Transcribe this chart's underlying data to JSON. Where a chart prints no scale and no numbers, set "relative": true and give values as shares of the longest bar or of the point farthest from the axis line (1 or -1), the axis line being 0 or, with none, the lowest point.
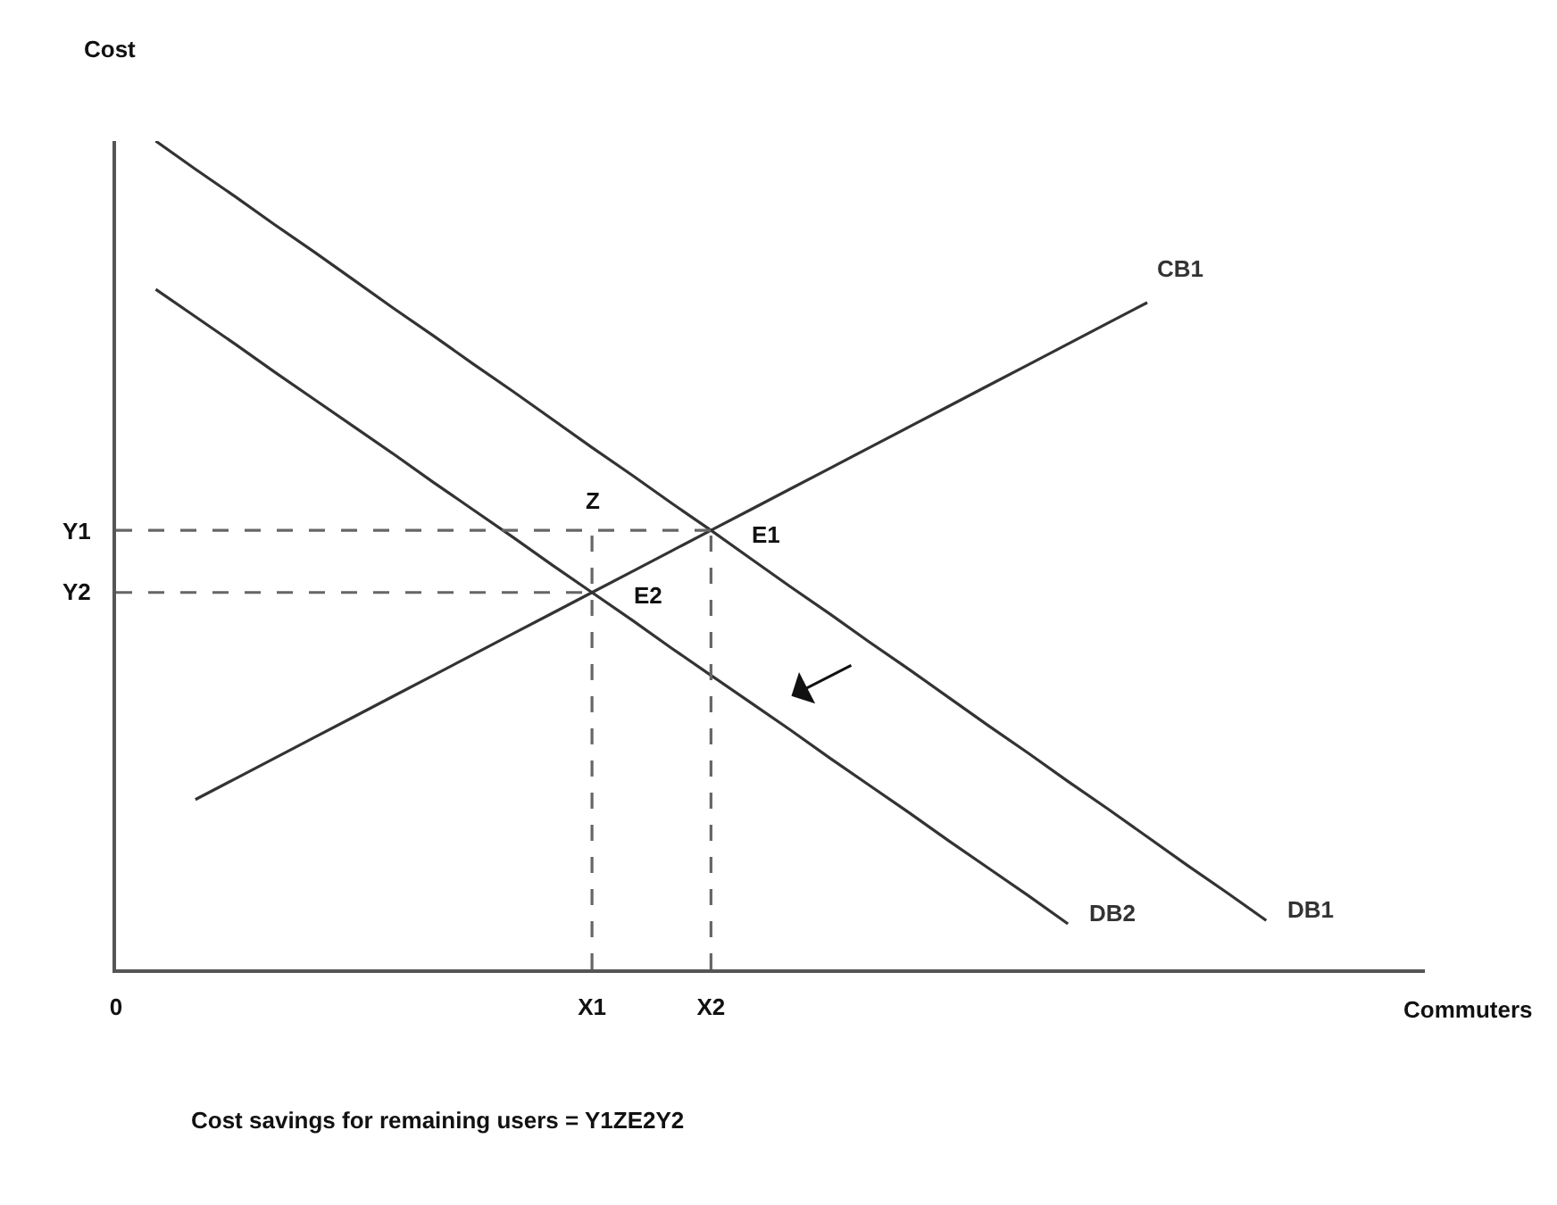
{
  "chart_data": {
    "type": "line",
    "relative": true,
    "xlabel": "Commuters",
    "ylabel": "Cost",
    "legend": false,
    "marker": "none",
    "categories": [
      "0",
      null,
      null,
      null,
      null,
      null,
      null,
      null,
      null,
      null,
      null,
      null,
      "X1",
      null,
      null,
      "X2",
      null,
      null,
      null,
      null,
      null,
      null,
      null,
      null,
      null,
      null,
      null,
      null,
      null,
      null,
      null,
      null,
      null,
      null
    ],
    "series": [
      {
        "name": "DB1",
        "color": "#333333",
        "values": [
          null,
          1.0,
          0.966,
          0.933,
          0.899,
          0.866,
          0.832,
          0.798,
          0.765,
          0.731,
          0.698,
          0.664,
          0.63,
          0.597,
          0.563,
          0.53,
          0.496,
          0.462,
          0.429,
          0.395,
          0.362,
          0.328,
          0.294,
          0.261,
          0.227,
          0.194,
          0.16,
          0.126,
          0.093,
          0.059,
          null,
          null,
          null,
          null
        ]
      },
      {
        "name": "DB2",
        "color": "#333333",
        "values": [
          null,
          0.821,
          0.788,
          0.755,
          0.721,
          0.688,
          0.655,
          0.622,
          0.588,
          0.555,
          0.522,
          0.488,
          0.455,
          0.422,
          0.388,
          0.355,
          0.322,
          0.289,
          0.255,
          0.222,
          0.189,
          0.155,
          0.122,
          0.089,
          0.055,
          null,
          null,
          null,
          null,
          null,
          null,
          null,
          null,
          null
        ]
      },
      {
        "name": "CB1",
        "color": "#333333",
        "values": [
          null,
          null,
          0.205,
          0.23,
          0.255,
          0.28,
          0.305,
          0.33,
          0.355,
          0.38,
          0.405,
          0.43,
          0.455,
          0.48,
          0.505,
          0.53,
          0.555,
          0.58,
          0.605,
          0.63,
          0.655,
          0.68,
          0.705,
          0.73,
          0.755,
          0.78,
          0.805,
          null,
          null,
          null,
          null,
          null,
          null,
          null
        ]
      },
      {
        "color": "#666666",
        "line_style": "dashed",
        "x": [
          "0",
          "X2"
        ],
        "values": [
          0.53,
          0.53
        ]
      },
      {
        "color": "#666666",
        "line_style": "dashed",
        "x": [
          "0",
          "X1"
        ],
        "values": [
          0.455,
          0.455
        ]
      },
      {
        "color": "#666666",
        "line_style": "dashed",
        "x": [
          "X1",
          "X1"
        ],
        "values": [
          0,
          0.53
        ]
      },
      {
        "color": "#666666",
        "line_style": "dashed",
        "x": [
          "X2",
          "X2"
        ],
        "values": [
          0,
          0.53
        ]
      }
    ],
    "annotations": [
      {
        "text": "Y1",
        "x": "0",
        "y": 0.53
      },
      {
        "text": "Y2",
        "x": "0",
        "y": 0.455
      },
      {
        "text": "Z",
        "x": "X1",
        "y": 0.53
      },
      {
        "text": "E1",
        "x": "X2",
        "y": 0.53
      },
      {
        "text": "E2",
        "x": "X1",
        "y": 0.455
      },
      "Cost savings for remaining users = Y1ZE2Y2"
    ]
  }
}
